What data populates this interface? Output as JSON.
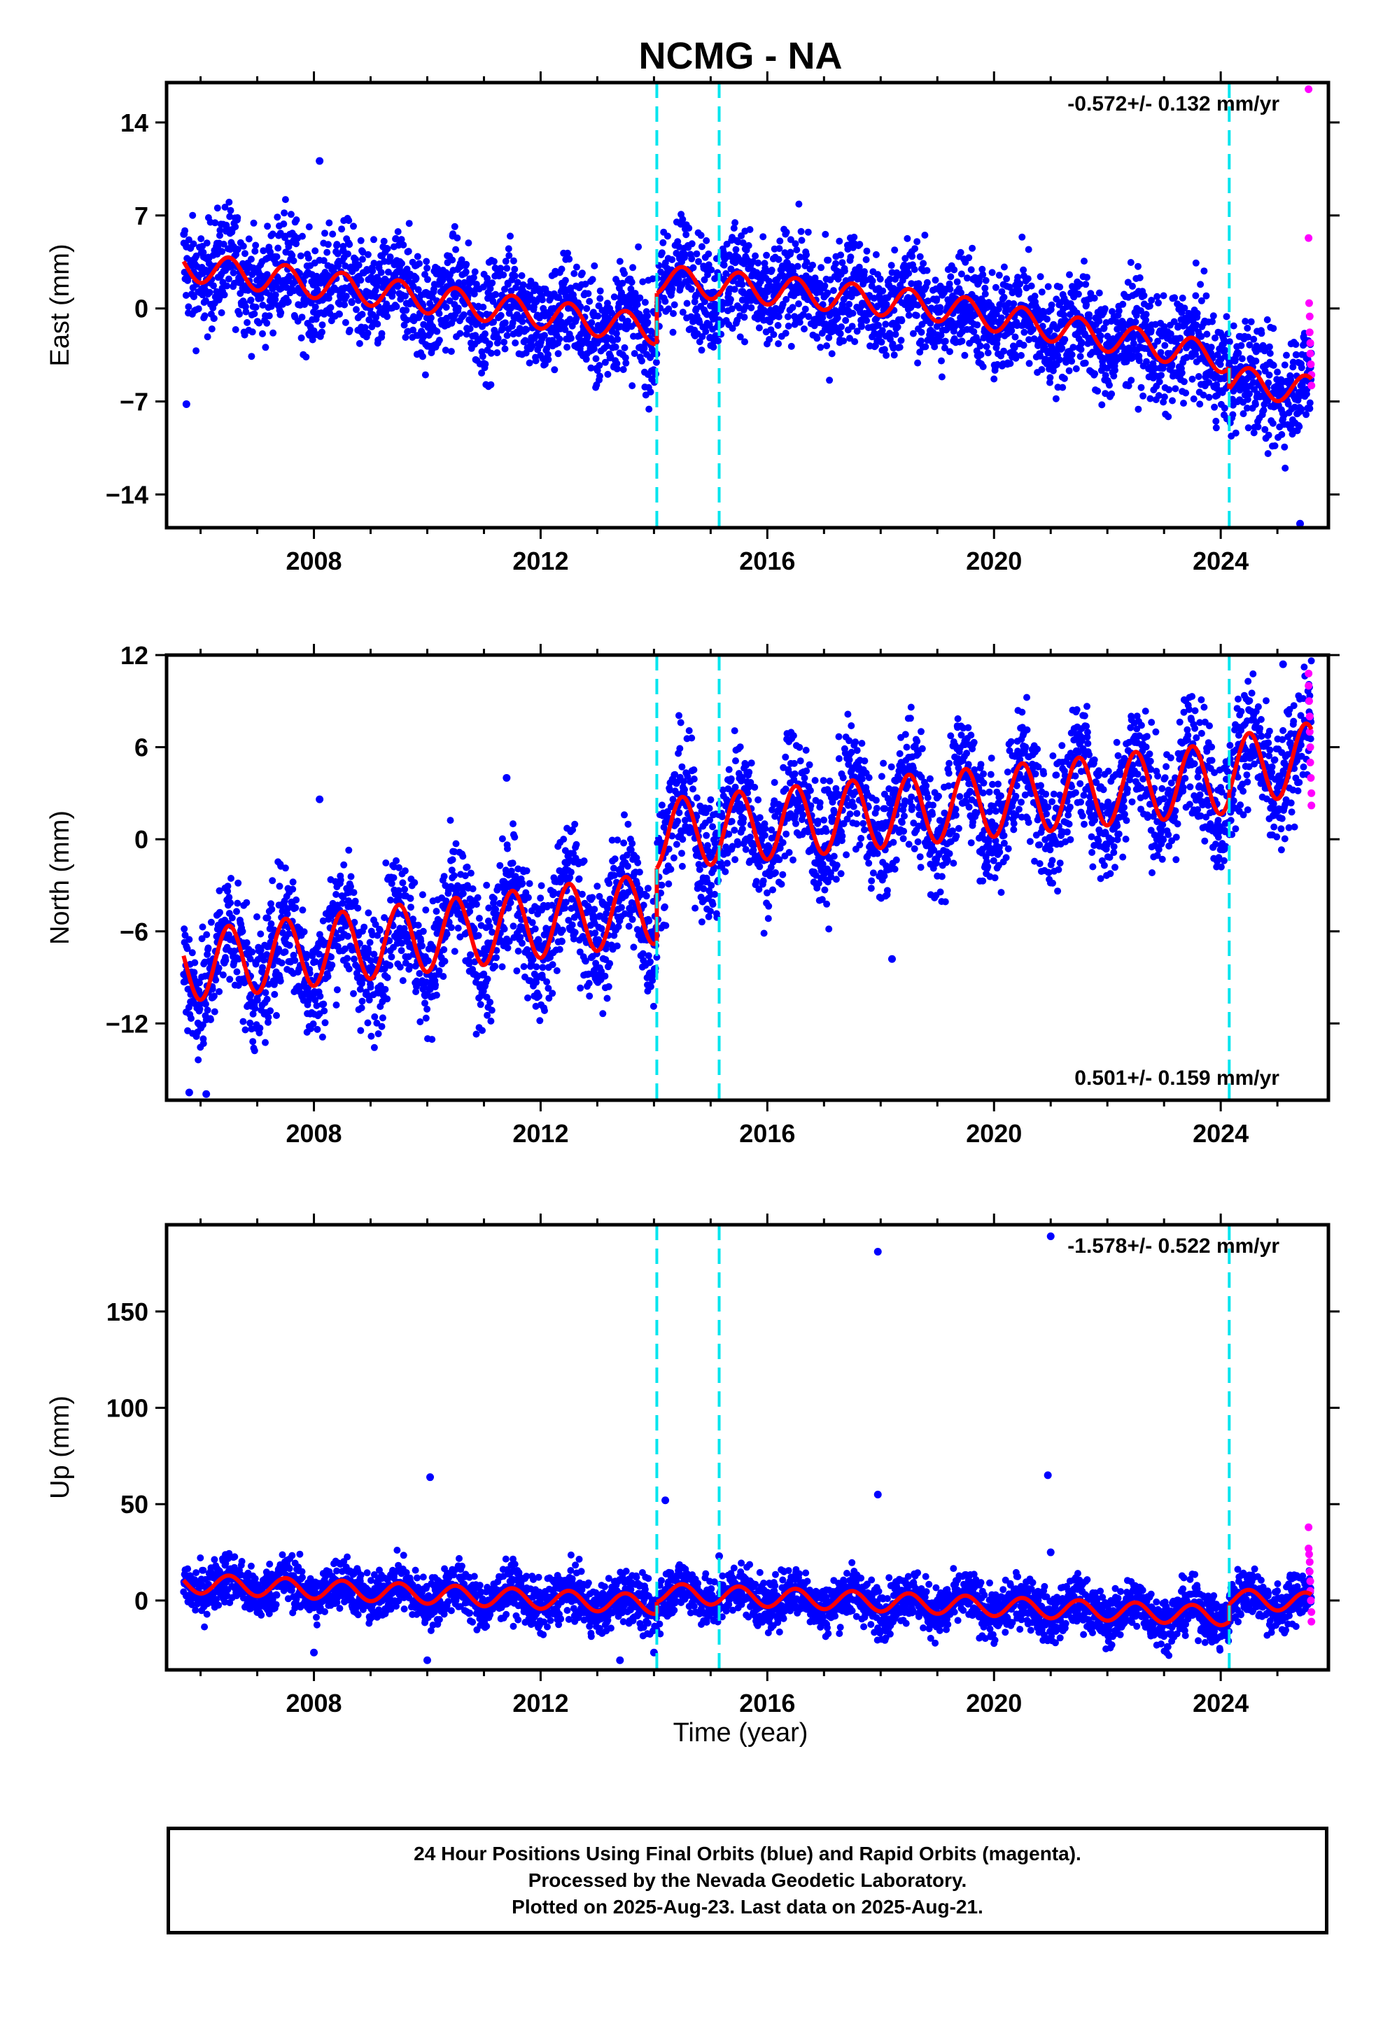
{
  "title": "NCMG - NA",
  "xlabel": "Time (year)",
  "caption": [
    "24 Hour Positions Using Final Orbits (blue) and Rapid Orbits (magenta).",
    "Processed by the Nevada Geodetic Laboratory.",
    "Plotted on 2025-Aug-23. Last data on 2025-Aug-21."
  ],
  "colors": {
    "final": "#0000ff",
    "rapid": "#ff00ff",
    "model": "#ff0000",
    "steps": "#00e5ee"
  },
  "chart_data": [
    {
      "type": "scatter",
      "ylabel": "East (mm)",
      "rate_label": "-0.572+/- 0.132 mm/yr",
      "rate_position": "top-right",
      "xlim": [
        2005.4,
        2025.9
      ],
      "ylim": [
        -16.5,
        17
      ],
      "xticks": [
        2008,
        2012,
        2016,
        2020,
        2024
      ],
      "yticks": [
        -14,
        -7,
        0,
        7,
        14
      ],
      "vlines": [
        2014.05,
        2015.15,
        2024.15
      ],
      "model": {
        "segments": [
          {
            "x": [
              2005.7,
              2014.05
            ],
            "y_start": 3.2,
            "y_end": -1.6,
            "amp": 1.1
          },
          {
            "x": [
              2014.05,
              2018.9
            ],
            "y_start": 2.2,
            "y_end": 0.2,
            "amp": 1.1
          },
          {
            "x": [
              2018.9,
              2024.15
            ],
            "y_start": 0.2,
            "y_end": -3.8,
            "amp": 1.1
          },
          {
            "x": [
              2024.15,
              2025.6
            ],
            "y_start": -5.4,
            "y_end": -6.2,
            "amp": 1.1
          }
        ]
      },
      "outliers": [
        {
          "x": 2005.75,
          "y": -7.2
        },
        {
          "x": 2008.1,
          "y": 11.1
        },
        {
          "x": 2025.4,
          "y": -16.2
        }
      ],
      "rapid_points": [
        {
          "x": 2025.55,
          "y": 16.5
        },
        {
          "x": 2025.55,
          "y": 5.3
        },
        {
          "x": 2025.56,
          "y": 0.4
        },
        {
          "x": 2025.57,
          "y": -0.6
        },
        {
          "x": 2025.57,
          "y": -1.8
        },
        {
          "x": 2025.58,
          "y": -2.6
        },
        {
          "x": 2025.58,
          "y": -3.4
        },
        {
          "x": 2025.59,
          "y": -4.2
        },
        {
          "x": 2025.6,
          "y": -5.0
        },
        {
          "x": 2025.6,
          "y": -5.8
        }
      ],
      "scatter_spread": 2.0
    },
    {
      "type": "scatter",
      "ylabel": "North (mm)",
      "rate_label": "0.501+/- 0.159 mm/yr",
      "rate_position": "bottom-right",
      "xlim": [
        2005.4,
        2025.9
      ],
      "ylim": [
        -17,
        12
      ],
      "xticks": [
        2008,
        2012,
        2016,
        2020,
        2024
      ],
      "yticks": [
        -12,
        -6,
        0,
        6,
        12
      ],
      "vlines": [
        2014.05,
        2015.15,
        2024.15
      ],
      "model": {
        "segments": [
          {
            "x": [
              2005.7,
              2014.05
            ],
            "y_start": -8.3,
            "y_end": -4.5,
            "amp": 2.3
          },
          {
            "x": [
              2014.05,
              2016.6
            ],
            "y_start": 0.3,
            "y_end": 1.2,
            "amp": 2.3
          },
          {
            "x": [
              2016.6,
              2024.15
            ],
            "y_start": 1.2,
            "y_end": 4.0,
            "amp": 2.3
          },
          {
            "x": [
              2024.15,
              2025.6
            ],
            "y_start": 4.4,
            "y_end": 5.3,
            "amp": 2.3
          }
        ]
      },
      "outliers": [
        {
          "x": 2005.8,
          "y": -16.5
        },
        {
          "x": 2006.1,
          "y": -16.6
        },
        {
          "x": 2008.1,
          "y": 2.6
        },
        {
          "x": 2011.4,
          "y": 4.0
        },
        {
          "x": 2018.2,
          "y": -7.8
        },
        {
          "x": 2025.1,
          "y": 11.4
        }
      ],
      "rapid_points": [
        {
          "x": 2025.55,
          "y": 10.8
        },
        {
          "x": 2025.55,
          "y": 10.0
        },
        {
          "x": 2025.56,
          "y": 9.0
        },
        {
          "x": 2025.57,
          "y": 8.0
        },
        {
          "x": 2025.57,
          "y": 7.0
        },
        {
          "x": 2025.58,
          "y": 6.0
        },
        {
          "x": 2025.58,
          "y": 5.0
        },
        {
          "x": 2025.59,
          "y": 4.0
        },
        {
          "x": 2025.6,
          "y": 3.0
        },
        {
          "x": 2025.6,
          "y": 2.2
        }
      ],
      "scatter_spread": 2.0
    },
    {
      "type": "scatter",
      "ylabel": "Up (mm)",
      "rate_label": "-1.578+/- 0.522 mm/yr",
      "rate_position": "top-right",
      "xlim": [
        2005.4,
        2025.9
      ],
      "ylim": [
        -36,
        195
      ],
      "xticks": [
        2008,
        2012,
        2016,
        2020,
        2024
      ],
      "yticks": [
        0,
        50,
        100,
        150
      ],
      "vlines": [
        2014.05,
        2015.15,
        2024.15
      ],
      "model": {
        "segments": [
          {
            "x": [
              2005.7,
              2014.05
            ],
            "y_start": 9.0,
            "y_end": -2.0,
            "amp": 5.0
          },
          {
            "x": [
              2014.05,
              2024.15
            ],
            "y_start": 4.0,
            "y_end": -8.0,
            "amp": 5.0
          },
          {
            "x": [
              2024.15,
              2025.6
            ],
            "y_start": 1.0,
            "y_end": -1.0,
            "amp": 5.0
          }
        ]
      },
      "outliers": [
        {
          "x": 2010.05,
          "y": 64
        },
        {
          "x": 2014.2,
          "y": 52
        },
        {
          "x": 2015.15,
          "y": 23
        },
        {
          "x": 2017.95,
          "y": 181
        },
        {
          "x": 2017.95,
          "y": 55
        },
        {
          "x": 2020.95,
          "y": 65
        },
        {
          "x": 2021.0,
          "y": 25
        },
        {
          "x": 2021.0,
          "y": 189
        },
        {
          "x": 2008.0,
          "y": -27
        },
        {
          "x": 2010.0,
          "y": -31
        },
        {
          "x": 2013.4,
          "y": -31
        },
        {
          "x": 2014.0,
          "y": -27
        }
      ],
      "rapid_points": [
        {
          "x": 2025.55,
          "y": 38
        },
        {
          "x": 2025.55,
          "y": 27
        },
        {
          "x": 2025.56,
          "y": 24
        },
        {
          "x": 2025.57,
          "y": 20
        },
        {
          "x": 2025.57,
          "y": 15
        },
        {
          "x": 2025.58,
          "y": 10
        },
        {
          "x": 2025.58,
          "y": 5
        },
        {
          "x": 2025.59,
          "y": 0
        },
        {
          "x": 2025.6,
          "y": -6
        },
        {
          "x": 2025.6,
          "y": -11
        }
      ],
      "scatter_spread": 6.5
    }
  ]
}
